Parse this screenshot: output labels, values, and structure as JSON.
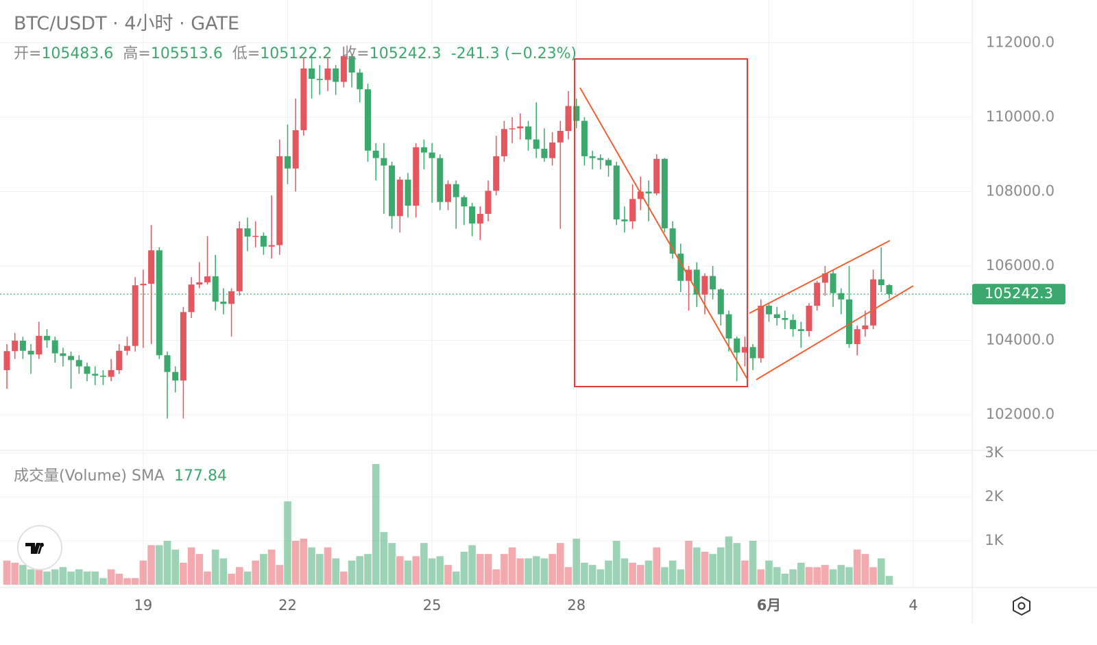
{
  "chart_data": {
    "type": "candlestick",
    "title": "BTC/USDT · 4小时 · GATE",
    "header_items": [
      {
        "label": "开=",
        "value": 105483.6
      },
      {
        "label": "高=",
        "value": 105513.6
      },
      {
        "label": "低=",
        "value": 105122.2
      },
      {
        "label": "收=",
        "value": 105242.3
      }
    ],
    "change": "-241.3 (−0.23%)",
    "categories": [
      null,
      null,
      null,
      null,
      null,
      null,
      null,
      null,
      null,
      null,
      null,
      null,
      null,
      null,
      null,
      null,
      null,
      "19",
      null,
      null,
      null,
      null,
      null,
      null,
      null,
      null,
      null,
      null,
      null,
      null,
      null,
      null,
      null,
      null,
      null,
      "22",
      null,
      null,
      null,
      null,
      null,
      null,
      null,
      null,
      null,
      null,
      null,
      null,
      null,
      null,
      null,
      null,
      null,
      "25",
      null,
      null,
      null,
      null,
      null,
      null,
      null,
      null,
      null,
      null,
      null,
      null,
      null,
      null,
      null,
      null,
      null,
      "28",
      null,
      null,
      null,
      null,
      null,
      null,
      null,
      null,
      null,
      null,
      null,
      null,
      null,
      null,
      null,
      null,
      null,
      null,
      null,
      null,
      null,
      null,
      null,
      "6月",
      null,
      null,
      null,
      null,
      null,
      null,
      null,
      null,
      null,
      null,
      null,
      null,
      null,
      null,
      null,
      null,
      null,
      "4"
    ],
    "open": [
      103200,
      103710,
      103990,
      103720,
      103620,
      104120,
      104000,
      103650,
      103580,
      103470,
      103300,
      103100,
      103050,
      103020,
      103200,
      103720,
      103850,
      105480,
      105520,
      106420,
      103600,
      103150,
      102920,
      104760,
      105500,
      105560,
      105720,
      105040,
      104980,
      105320,
      107010,
      106790,
      106810,
      106520,
      106560,
      108950,
      108620,
      109650,
      111310,
      111030,
      111000,
      111310,
      110950,
      111640,
      111200,
      110750,
      109100,
      108900,
      108700,
      107340,
      108320,
      107620,
      109190,
      109050,
      108900,
      107720,
      108200,
      107850,
      107600,
      107140,
      107400,
      108020,
      108950,
      109680,
      109700,
      109750,
      109400,
      109150,
      108900,
      109320,
      109630,
      110300,
      109900,
      108950,
      108900,
      108850,
      108700,
      107250,
      107200,
      107800,
      108000,
      107950,
      108880,
      107010,
      106330,
      105600,
      105900,
      105230,
      105730,
      105370,
      104700,
      104050,
      103670,
      103820,
      103520,
      104930,
      104700,
      104600,
      104550,
      104300,
      104250,
      104930,
      105550,
      105800,
      105270,
      105100,
      103900,
      104300,
      104400,
      105640,
      105483.6,
      null,
      null,
      null
    ],
    "high": [
      103900,
      104200,
      104100,
      103900,
      104500,
      104300,
      104100,
      103800,
      103700,
      103600,
      103400,
      103300,
      103200,
      103500,
      103900,
      104100,
      105700,
      105900,
      107100,
      106500,
      103700,
      103300,
      104900,
      105700,
      106100,
      106800,
      106300,
      105400,
      105400,
      107200,
      107300,
      107200,
      106900,
      107900,
      109400,
      109800,
      110500,
      111600,
      111700,
      111400,
      111600,
      111400,
      111900,
      111700,
      111300,
      110900,
      109300,
      109300,
      108800,
      108400,
      108500,
      109300,
      109400,
      109300,
      109000,
      108300,
      108300,
      107900,
      107700,
      107600,
      108300,
      109500,
      109900,
      110000,
      110100,
      109900,
      110400,
      109700,
      109600,
      109900,
      110700,
      110500,
      110000,
      109100,
      109000,
      108900,
      108800,
      107600,
      108200,
      108400,
      108300,
      109000,
      108900,
      107200,
      106600,
      106000,
      106100,
      105800,
      106000,
      105400,
      104800,
      104100,
      104100,
      103900,
      105100,
      105000,
      104900,
      104800,
      104700,
      104500,
      105000,
      105600,
      106000,
      105900,
      105400,
      106000,
      104400,
      104800,
      105900,
      106500,
      105513.6,
      null,
      null,
      null
    ],
    "low": [
      102700,
      103500,
      103500,
      103100,
      103500,
      103800,
      103400,
      103300,
      102700,
      103100,
      102900,
      102800,
      102800,
      102900,
      103100,
      103600,
      103700,
      103800,
      103900,
      103500,
      101900,
      102600,
      101900,
      104600,
      105400,
      105500,
      104800,
      104700,
      104100,
      105200,
      106400,
      106500,
      106300,
      106200,
      106300,
      108200,
      108000,
      109500,
      110500,
      110600,
      110700,
      110600,
      110800,
      110800,
      110400,
      108800,
      108300,
      107400,
      107000,
      106900,
      107300,
      107300,
      108600,
      107700,
      107500,
      107500,
      107000,
      107100,
      106800,
      106700,
      107200,
      107900,
      108800,
      109300,
      109400,
      109100,
      108900,
      108800,
      108700,
      107000,
      109400,
      109700,
      108700,
      108600,
      108600,
      108400,
      107100,
      106900,
      107000,
      107500,
      107200,
      107900,
      106900,
      106200,
      105300,
      104800,
      104900,
      104700,
      105100,
      104400,
      103700,
      102900,
      103300,
      103200,
      103400,
      104500,
      104400,
      104300,
      104100,
      103800,
      104100,
      104800,
      105200,
      104900,
      104700,
      103800,
      103600,
      104100,
      104300,
      105300,
      105122.2,
      null,
      null,
      null
    ],
    "close": [
      103710,
      103990,
      103720,
      103620,
      104120,
      104000,
      103650,
      103580,
      103470,
      103300,
      103100,
      103050,
      103020,
      103200,
      103720,
      103850,
      105480,
      105520,
      106420,
      103600,
      103150,
      102920,
      104760,
      105500,
      105560,
      105720,
      105040,
      104980,
      105320,
      107010,
      106790,
      106810,
      106520,
      106560,
      108950,
      108620,
      109650,
      111310,
      111030,
      111000,
      111310,
      110950,
      111640,
      111200,
      110750,
      109100,
      108900,
      108700,
      107340,
      108320,
      107620,
      109190,
      109050,
      108900,
      107720,
      108200,
      107850,
      107600,
      107140,
      107400,
      108020,
      108950,
      109680,
      109700,
      109750,
      109400,
      109150,
      108900,
      109320,
      109630,
      110300,
      109900,
      108950,
      108900,
      108850,
      108700,
      107250,
      107200,
      107800,
      108000,
      107950,
      108880,
      107010,
      106330,
      105600,
      105900,
      105230,
      105730,
      105370,
      104700,
      104050,
      103670,
      103820,
      103520,
      104930,
      104700,
      104600,
      104550,
      104300,
      104250,
      104930,
      105550,
      105800,
      105270,
      105100,
      103900,
      104300,
      104400,
      105640,
      105483.6,
      105242.3,
      null,
      null,
      null
    ],
    "ylim": [
      101080,
      113150
    ],
    "yticks": [
      {
        "value": 102000,
        "label": "102000.0"
      },
      {
        "value": 104000,
        "label": "104000.0"
      },
      {
        "value": 106000,
        "label": "106000.0"
      },
      {
        "value": 108000,
        "label": "108000.0"
      },
      {
        "value": 110000,
        "label": "110000.0"
      },
      {
        "value": 112000,
        "label": "112000.0"
      }
    ],
    "up_color": "#e5565f",
    "down_color": "#3ba86c",
    "grid": true,
    "volume_title": "成交量(Volume) SMA",
    "volume_sma": 177.84,
    "volume": [
      550,
      500,
      450,
      350,
      400,
      300,
      350,
      400,
      300,
      350,
      300,
      300,
      150,
      350,
      250,
      150,
      150,
      550,
      900,
      900,
      1000,
      800,
      500,
      850,
      700,
      300,
      800,
      600,
      250,
      400,
      300,
      550,
      700,
      800,
      450,
      1900,
      1000,
      1050,
      850,
      700,
      850,
      600,
      300,
      550,
      650,
      700,
      2750,
      1200,
      950,
      650,
      550,
      650,
      950,
      600,
      650,
      450,
      300,
      750,
      900,
      700,
      700,
      350,
      700,
      850,
      600,
      600,
      650,
      600,
      700,
      950,
      400,
      1050,
      500,
      450,
      350,
      550,
      1000,
      600,
      500,
      450,
      550,
      850,
      400,
      550,
      350,
      1000,
      850,
      750,
      700,
      850,
      1100,
      950,
      550,
      1000,
      350,
      550,
      400,
      250,
      350,
      500,
      400,
      400,
      450,
      350,
      450,
      400,
      800,
      700,
      400,
      600,
      200,
      null,
      null,
      null
    ],
    "volume_ylim": [
      0,
      3000
    ],
    "volume_yticks": [
      {
        "value": 1000,
        "label": "1K"
      },
      {
        "value": 2000,
        "label": "2K"
      },
      {
        "value": 3000,
        "label": "3K"
      }
    ]
  }
}
